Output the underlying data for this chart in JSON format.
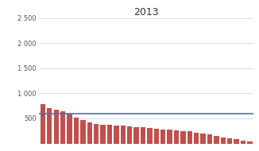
{
  "title": "2013",
  "bar_values": [
    780,
    700,
    670,
    640,
    590,
    510,
    460,
    420,
    390,
    380,
    370,
    360,
    350,
    340,
    330,
    320,
    310,
    295,
    280,
    270,
    260,
    250,
    240,
    220,
    200,
    175,
    155,
    120,
    100,
    80,
    60,
    40
  ],
  "bar_color": "#c0504d",
  "line_value": 600,
  "line_color": "#4472c4",
  "ylim": [
    0,
    2500
  ],
  "yticks": [
    0,
    500,
    1000,
    1500,
    2000,
    2500
  ],
  "ytick_labels": [
    "",
    "500",
    "1 000",
    "1 500",
    "2 000",
    "2 500"
  ],
  "background_color": "#ffffff",
  "grid_color": "#d0d0d0",
  "title_fontsize": 9,
  "tick_fontsize": 6,
  "figsize": [
    3.26,
    1.9
  ],
  "dpi": 100
}
